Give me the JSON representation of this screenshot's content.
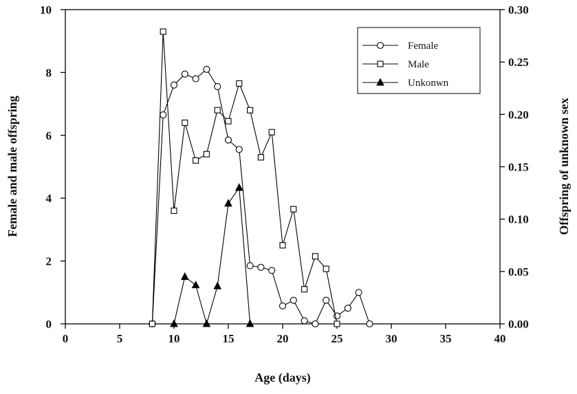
{
  "chart_data": {
    "type": "line",
    "xlabel": "Age (days)",
    "ylabel": "Female and male offspring",
    "y2label": "Offspring of unknown sex",
    "x": [
      8,
      9,
      10,
      11,
      12,
      13,
      14,
      15,
      16,
      17,
      18,
      19,
      20,
      21,
      22,
      23,
      24,
      25,
      26,
      27,
      28
    ],
    "series": [
      {
        "name": "Female",
        "color": "#000000",
        "marker": "circle",
        "values": [
          0,
          6.65,
          7.6,
          7.95,
          7.8,
          8.1,
          7.55,
          5.85,
          5.55,
          1.85,
          1.8,
          1.7,
          0.57,
          0.75,
          0.1,
          0,
          0.75,
          0.25,
          0.5,
          1.0,
          0
        ]
      },
      {
        "name": "Male",
        "color": "#000000",
        "marker": "square",
        "values": [
          0,
          9.3,
          3.6,
          6.4,
          5.2,
          5.4,
          6.8,
          6.45,
          7.65,
          6.8,
          5.3,
          6.1,
          2.5,
          3.65,
          1.1,
          2.15,
          1.75,
          0,
          null,
          null,
          null
        ]
      },
      {
        "name": "Unkonwn",
        "color": "#000000",
        "marker": "triangle",
        "axis": "y2",
        "values": [
          null,
          null,
          0,
          0.045,
          0.037,
          0,
          0.036,
          0.115,
          0.13,
          0,
          null,
          null,
          null,
          null,
          null,
          null,
          null,
          null,
          null,
          null,
          null
        ]
      }
    ],
    "xlim": [
      0,
      40
    ],
    "xticks": [
      0,
      5,
      10,
      15,
      20,
      25,
      30,
      35,
      40
    ],
    "ylim": [
      0,
      10
    ],
    "yticks": [
      0,
      2,
      4,
      6,
      8,
      10
    ],
    "y2lim": [
      0,
      0.3
    ],
    "y2ticks": [
      {
        "value": 0,
        "label": "0.00"
      },
      {
        "value": 0.05,
        "label": "0.05"
      },
      {
        "value": 0.1,
        "label": "0.10"
      },
      {
        "value": 0.15,
        "label": "0.15"
      },
      {
        "value": 0.2,
        "label": "0.20"
      },
      {
        "value": 0.25,
        "label": "0.25"
      },
      {
        "value": 0.3,
        "label": "0.30"
      }
    ],
    "legend": "upper-right"
  }
}
